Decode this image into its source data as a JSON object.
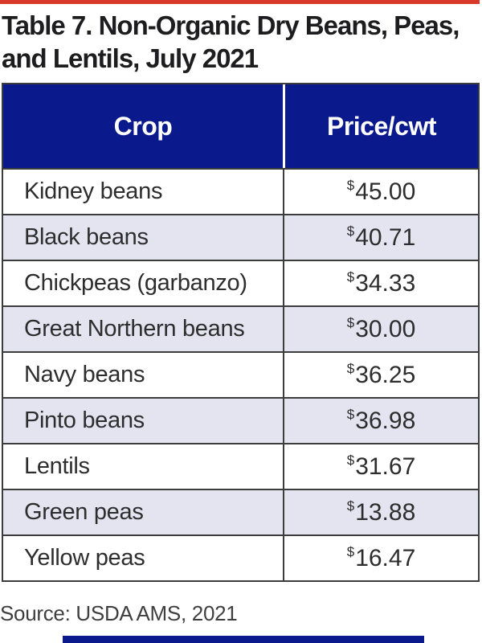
{
  "colors": {
    "top_rule": "#d9382a",
    "header_bg": "#0a1a8c",
    "row_alt_bg": "#e4e3f0",
    "border": "#3c3c3c",
    "bottom_bar": "#0a1a8c"
  },
  "title": {
    "full": "Table 7. Non-Organic Dry Beans, Peas, and Lentils, July 2021",
    "line1": "Table 7. Non-Organic Dry Beans, Peas,",
    "line2": "and Lentils, July 2021"
  },
  "table": {
    "columns": [
      {
        "label": "Crop"
      },
      {
        "label": "Price/cwt"
      }
    ],
    "rows": [
      {
        "crop": "Kidney beans",
        "currency": "$",
        "price": "45.00"
      },
      {
        "crop": "Black beans",
        "currency": "$",
        "price": "40.71"
      },
      {
        "crop": "Chickpeas (garbanzo)",
        "currency": "$",
        "price": "34.33"
      },
      {
        "crop": "Great Northern beans",
        "currency": "$",
        "price": "30.00"
      },
      {
        "crop": "Navy beans",
        "currency": "$",
        "price": "36.25"
      },
      {
        "crop": "Pinto beans",
        "currency": "$",
        "price": "36.98"
      },
      {
        "crop": "Lentils",
        "currency": "$",
        "price": "31.67"
      },
      {
        "crop": "Green peas",
        "currency": "$",
        "price": "13.88"
      },
      {
        "crop": "Yellow peas",
        "currency": "$",
        "price": "16.47"
      }
    ]
  },
  "source": {
    "text": "Source: USDA AMS, 2021"
  },
  "chart_data": {
    "type": "table",
    "title": "Table 7. Non-Organic Dry Beans, Peas, and Lentils, July 2021",
    "columns": [
      "Crop",
      "Price/cwt"
    ],
    "rows": [
      [
        "Kidney beans",
        45.0
      ],
      [
        "Black beans",
        40.71
      ],
      [
        "Chickpeas (garbanzo)",
        34.33
      ],
      [
        "Great Northern beans",
        30.0
      ],
      [
        "Navy beans",
        36.25
      ],
      [
        "Pinto beans",
        36.98
      ],
      [
        "Lentils",
        31.67
      ],
      [
        "Green peas",
        13.88
      ],
      [
        "Yellow peas",
        16.47
      ]
    ],
    "unit": "USD per cwt",
    "source": "Source: USDA AMS, 2021"
  }
}
